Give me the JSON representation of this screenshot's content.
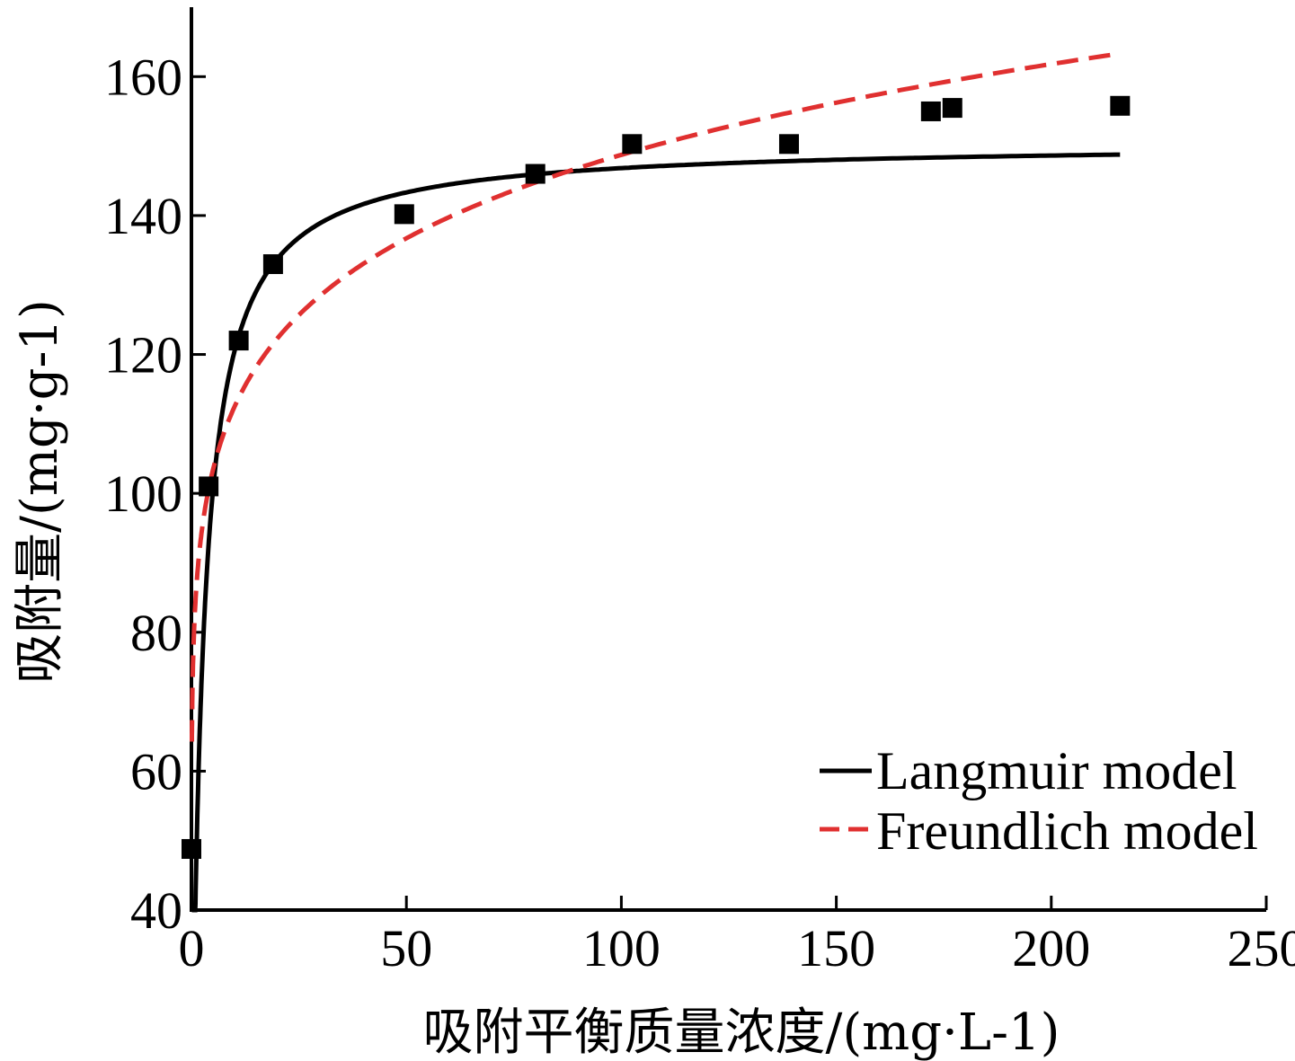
{
  "chart_data": {
    "type": "scatter",
    "xlabel": "吸附平衡质量浓度/(mg·L-1)",
    "ylabel": "吸附量/(mg·g-1)",
    "xlim": [
      0,
      250
    ],
    "ylim": [
      40,
      170
    ],
    "xticks": [
      0,
      50,
      100,
      150,
      200,
      250
    ],
    "yticks": [
      40,
      60,
      80,
      100,
      120,
      140,
      160
    ],
    "xtick_labels": [
      "0",
      "50",
      "100",
      "150",
      "200",
      "250"
    ],
    "ytick_labels": [
      "40",
      "60",
      "80",
      "100",
      "120",
      "140",
      "160"
    ],
    "grid": false,
    "legend_position": "bottom-right",
    "points": {
      "x": [
        0,
        4,
        11,
        19,
        49.5,
        80,
        102.5,
        139,
        172,
        177,
        216
      ],
      "y": [
        48.8,
        101,
        122,
        133,
        140.2,
        146,
        150.3,
        150.3,
        155,
        155.5,
        155.8
      ]
    },
    "series": [
      {
        "name": "Langmuir model",
        "style": "solid",
        "color": "#000000",
        "curve": {
          "model": "langmuir",
          "qm": 150.5,
          "KL": 0.4,
          "x_range": [
            0.1,
            216
          ]
        }
      },
      {
        "name": "Freundlich model",
        "style": "dashed",
        "color": "#e03030",
        "curve": {
          "model": "freundlich",
          "KF": 85.0,
          "n_inv": 0.1215,
          "x_range": [
            0.1,
            216
          ]
        }
      }
    ]
  }
}
